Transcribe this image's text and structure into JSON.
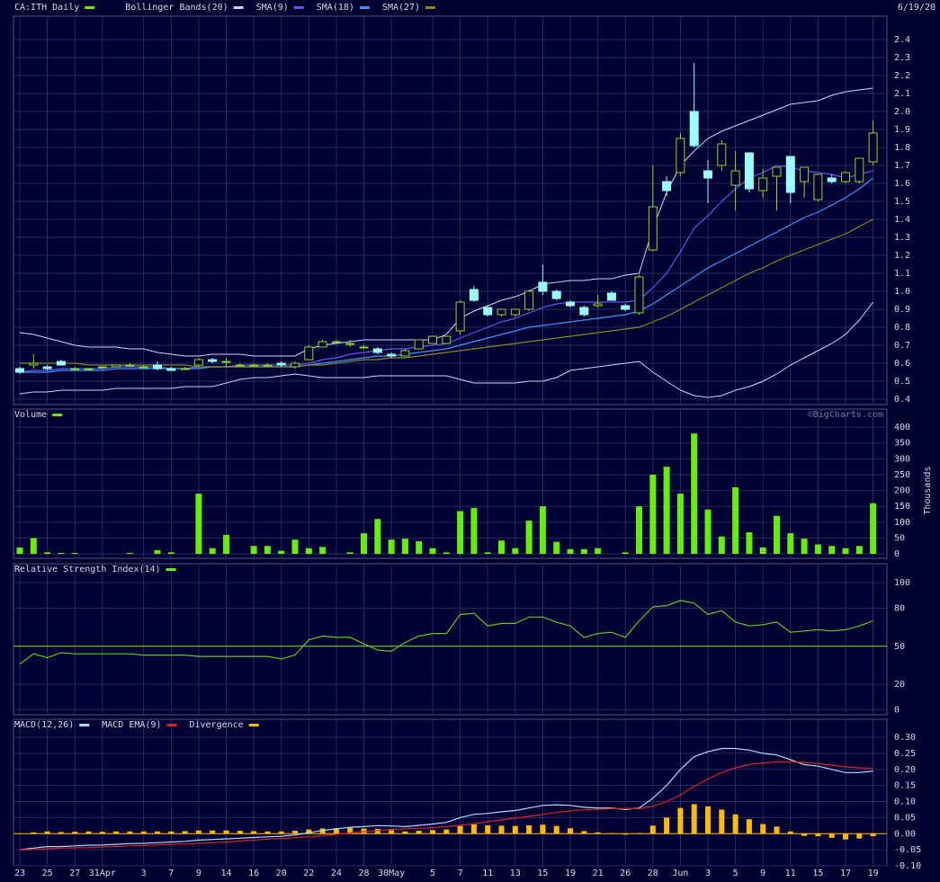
{
  "chart_data": [
    {
      "type": "candlestick",
      "name": "CA:ITH Daily",
      "color": "#88dd22",
      "legend_color": "#66ee00",
      "down_color": "#99ffff",
      "date": "6/19/20",
      "grid": true,
      "open": [
        0.57,
        0.59,
        0.58,
        0.61,
        0.57,
        0.57,
        0.58,
        0.58,
        0.59,
        0.58,
        0.59,
        0.57,
        0.57,
        0.59,
        0.62,
        0.61,
        0.59,
        0.59,
        0.59,
        0.6,
        0.58,
        0.62,
        0.69,
        0.72,
        0.71,
        0.69,
        0.68,
        0.65,
        0.64,
        0.68,
        0.71,
        0.71,
        0.78,
        1.01,
        0.91,
        0.87,
        0.87,
        0.9,
        1.05,
        1.0,
        0.94,
        0.91,
        0.92,
        0.99,
        0.92,
        0.88,
        1.23,
        1.61,
        1.66,
        2.0,
        1.67,
        1.7,
        1.59,
        1.77,
        1.56,
        1.64,
        1.75,
        1.61,
        1.51,
        1.63,
        1.61,
        1.61,
        1.72
      ],
      "high": [
        0.58,
        0.65,
        0.59,
        0.62,
        0.58,
        0.57,
        0.58,
        0.59,
        0.6,
        0.59,
        0.61,
        0.58,
        0.58,
        0.63,
        0.63,
        0.63,
        0.6,
        0.6,
        0.6,
        0.61,
        0.61,
        0.7,
        0.73,
        0.73,
        0.73,
        0.7,
        0.69,
        0.66,
        0.68,
        0.73,
        0.75,
        0.75,
        0.95,
        1.03,
        0.92,
        0.9,
        0.9,
        1.01,
        1.15,
        1.01,
        0.95,
        0.92,
        0.98,
        1.0,
        0.93,
        1.09,
        1.7,
        1.64,
        1.88,
        2.27,
        1.73,
        1.84,
        1.78,
        1.77,
        1.68,
        1.69,
        1.75,
        1.69,
        1.65,
        1.65,
        1.67,
        1.74,
        1.95
      ],
      "low": [
        0.54,
        0.57,
        0.56,
        0.59,
        0.57,
        0.57,
        0.57,
        0.58,
        0.58,
        0.58,
        0.56,
        0.56,
        0.57,
        0.58,
        0.6,
        0.58,
        0.59,
        0.58,
        0.58,
        0.58,
        0.57,
        0.62,
        0.69,
        0.71,
        0.69,
        0.68,
        0.65,
        0.63,
        0.64,
        0.68,
        0.71,
        0.71,
        0.76,
        0.94,
        0.86,
        0.86,
        0.86,
        0.89,
        0.98,
        0.95,
        0.91,
        0.86,
        0.91,
        0.95,
        0.89,
        0.87,
        1.22,
        1.53,
        1.64,
        1.8,
        1.49,
        1.67,
        1.45,
        1.55,
        1.52,
        1.45,
        1.49,
        1.52,
        1.5,
        1.6,
        1.6,
        1.6,
        1.7
      ],
      "close": [
        0.55,
        0.6,
        0.57,
        0.59,
        0.57,
        0.57,
        0.58,
        0.59,
        0.59,
        0.58,
        0.57,
        0.56,
        0.57,
        0.62,
        0.61,
        0.61,
        0.59,
        0.59,
        0.59,
        0.59,
        0.6,
        0.69,
        0.72,
        0.72,
        0.71,
        0.69,
        0.66,
        0.64,
        0.67,
        0.73,
        0.75,
        0.75,
        0.94,
        0.95,
        0.87,
        0.9,
        0.9,
        1.0,
        1.0,
        0.96,
        0.92,
        0.87,
        0.93,
        0.95,
        0.9,
        1.08,
        1.47,
        1.56,
        1.85,
        1.81,
        1.63,
        1.82,
        1.67,
        1.57,
        1.63,
        1.69,
        1.55,
        1.69,
        1.65,
        1.61,
        1.66,
        1.74,
        1.88
      ],
      "overlays": [
        {
          "name": "Bollinger Bands(20)",
          "color": "#c8d8ff",
          "upper": [
            0.77,
            0.76,
            0.74,
            0.72,
            0.7,
            0.69,
            0.69,
            0.69,
            0.68,
            0.68,
            0.66,
            0.65,
            0.64,
            0.64,
            0.65,
            0.65,
            0.65,
            0.64,
            0.64,
            0.64,
            0.64,
            0.68,
            0.7,
            0.71,
            0.72,
            0.73,
            0.73,
            0.73,
            0.73,
            0.73,
            0.73,
            0.76,
            0.85,
            0.89,
            0.92,
            0.95,
            0.97,
            1.0,
            1.04,
            1.05,
            1.06,
            1.06,
            1.07,
            1.07,
            1.09,
            1.1,
            1.35,
            1.55,
            1.7,
            1.78,
            1.85,
            1.89,
            1.92,
            1.95,
            1.98,
            2.01,
            2.04,
            2.05,
            2.06,
            2.09,
            2.11,
            2.12,
            2.13
          ],
          "lower": [
            0.43,
            0.44,
            0.44,
            0.45,
            0.45,
            0.45,
            0.45,
            0.46,
            0.46,
            0.46,
            0.46,
            0.46,
            0.47,
            0.47,
            0.47,
            0.49,
            0.51,
            0.52,
            0.52,
            0.53,
            0.54,
            0.53,
            0.52,
            0.52,
            0.52,
            0.52,
            0.53,
            0.53,
            0.53,
            0.53,
            0.53,
            0.53,
            0.51,
            0.49,
            0.49,
            0.49,
            0.49,
            0.5,
            0.5,
            0.52,
            0.56,
            0.57,
            0.58,
            0.59,
            0.6,
            0.61,
            0.55,
            0.5,
            0.45,
            0.42,
            0.41,
            0.42,
            0.45,
            0.47,
            0.5,
            0.54,
            0.59,
            0.63,
            0.67,
            0.71,
            0.76,
            0.84,
            0.94
          ]
        },
        {
          "name": "SMA(9)",
          "color": "#6655ee",
          "values": [
            0.55,
            0.56,
            0.56,
            0.57,
            0.57,
            0.57,
            0.57,
            0.58,
            0.58,
            0.58,
            0.58,
            0.57,
            0.57,
            0.58,
            0.58,
            0.58,
            0.59,
            0.59,
            0.59,
            0.59,
            0.59,
            0.6,
            0.62,
            0.63,
            0.65,
            0.66,
            0.67,
            0.68,
            0.68,
            0.69,
            0.7,
            0.71,
            0.74,
            0.77,
            0.8,
            0.83,
            0.85,
            0.88,
            0.91,
            0.93,
            0.94,
            0.94,
            0.94,
            0.94,
            0.94,
            0.95,
            1.02,
            1.1,
            1.22,
            1.35,
            1.42,
            1.5,
            1.57,
            1.63,
            1.66,
            1.7,
            1.69,
            1.67,
            1.66,
            1.65,
            1.63,
            1.65,
            1.67
          ]
        },
        {
          "name": "SMA(18)",
          "color": "#3399ff",
          "values": [
            0.55,
            0.55,
            0.55,
            0.56,
            0.56,
            0.56,
            0.56,
            0.57,
            0.57,
            0.57,
            0.57,
            0.57,
            0.57,
            0.57,
            0.58,
            0.58,
            0.58,
            0.58,
            0.58,
            0.58,
            0.58,
            0.59,
            0.6,
            0.61,
            0.62,
            0.63,
            0.64,
            0.64,
            0.65,
            0.66,
            0.67,
            0.68,
            0.7,
            0.72,
            0.74,
            0.76,
            0.78,
            0.8,
            0.81,
            0.82,
            0.83,
            0.84,
            0.85,
            0.86,
            0.87,
            0.89,
            0.93,
            0.98,
            1.03,
            1.08,
            1.13,
            1.17,
            1.21,
            1.25,
            1.29,
            1.33,
            1.37,
            1.41,
            1.44,
            1.48,
            1.52,
            1.57,
            1.63
          ]
        },
        {
          "name": "SMA(27)",
          "color": "#8a8a22",
          "values": [
            0.6,
            0.6,
            0.6,
            0.6,
            0.6,
            0.59,
            0.59,
            0.59,
            0.59,
            0.59,
            0.59,
            0.59,
            0.59,
            0.58,
            0.58,
            0.58,
            0.58,
            0.58,
            0.58,
            0.58,
            0.58,
            0.59,
            0.59,
            0.6,
            0.61,
            0.62,
            0.62,
            0.63,
            0.63,
            0.64,
            0.65,
            0.66,
            0.67,
            0.68,
            0.69,
            0.7,
            0.71,
            0.72,
            0.73,
            0.74,
            0.75,
            0.76,
            0.77,
            0.78,
            0.79,
            0.8,
            0.83,
            0.86,
            0.9,
            0.94,
            0.98,
            1.02,
            1.06,
            1.1,
            1.13,
            1.17,
            1.2,
            1.23,
            1.26,
            1.29,
            1.32,
            1.36,
            1.4
          ]
        }
      ],
      "ylim": [
        0.37,
        2.53
      ],
      "yticks": [
        0.4,
        0.5,
        0.6,
        0.7,
        0.8,
        0.9,
        {
          "value": 1,
          "label": "1.0"
        },
        1.1,
        1.2,
        1.3,
        1.4,
        1.5,
        1.6,
        1.7,
        1.8,
        1.9,
        {
          "value": 2,
          "label": "2.0"
        },
        2.1,
        2.2,
        2.3,
        2.4
      ]
    },
    {
      "type": "bar",
      "name": "Volume",
      "color": "#66ee00",
      "y_label": "Thousands",
      "watermark": "©BigCharts.com",
      "grid": true,
      "values": [
        20,
        50,
        5,
        3,
        3,
        0,
        0,
        0,
        3,
        0,
        12,
        5,
        0,
        190,
        18,
        60,
        0,
        25,
        25,
        10,
        45,
        18,
        22,
        0,
        5,
        65,
        110,
        45,
        48,
        40,
        18,
        5,
        135,
        145,
        5,
        42,
        18,
        105,
        150,
        38,
        15,
        15,
        18,
        0,
        5,
        150,
        250,
        275,
        190,
        380,
        140,
        55,
        210,
        68,
        20,
        120,
        65,
        48,
        30,
        25,
        18,
        25,
        160
      ],
      "ylim": [
        -14,
        457
      ],
      "yticks": [
        0,
        50,
        100,
        150,
        200,
        250,
        300,
        350,
        400
      ]
    },
    {
      "type": "line",
      "grid": true,
      "series": [
        {
          "name": "Relative Strength Index(14)",
          "color": "#55cc22",
          "legend_color": "#66ee00",
          "values": [
            36,
            44,
            41,
            45,
            44,
            44,
            44,
            44,
            44,
            43,
            43,
            43,
            43,
            42,
            42,
            42,
            42,
            42,
            42,
            40,
            43,
            55,
            58,
            57,
            57,
            52,
            47,
            46,
            53,
            58,
            60,
            60,
            75,
            76,
            66,
            68,
            68,
            73,
            73,
            69,
            66,
            57,
            60,
            61,
            57,
            70,
            81,
            82,
            86,
            84,
            75,
            78,
            69,
            66,
            67,
            69,
            61,
            62,
            63,
            62,
            63,
            66,
            70
          ]
        }
      ],
      "ref_line": {
        "value": 50,
        "color": "#66ee00"
      },
      "ylim": [
        -4,
        115
      ],
      "yticks": [
        0,
        20,
        50,
        80,
        100
      ]
    },
    {
      "type": "line",
      "grid": true,
      "series": [
        {
          "name": "MACD(12,26)",
          "color": "#aaddff",
          "kind": "line",
          "values": [
            -0.05,
            -0.045,
            -0.04,
            -0.04,
            -0.038,
            -0.036,
            -0.035,
            -0.033,
            -0.031,
            -0.03,
            -0.028,
            -0.026,
            -0.024,
            -0.02,
            -0.018,
            -0.016,
            -0.014,
            -0.012,
            -0.01,
            -0.008,
            -0.004,
            0.003,
            0.01,
            0.015,
            0.02,
            0.022,
            0.025,
            0.024,
            0.022,
            0.026,
            0.03,
            0.035,
            0.05,
            0.06,
            0.063,
            0.068,
            0.072,
            0.08,
            0.088,
            0.09,
            0.088,
            0.082,
            0.08,
            0.08,
            0.075,
            0.08,
            0.11,
            0.15,
            0.2,
            0.24,
            0.255,
            0.265,
            0.265,
            0.26,
            0.25,
            0.245,
            0.23,
            0.215,
            0.21,
            0.2,
            0.19,
            0.19,
            0.195
          ]
        },
        {
          "name": "MACD EMA(9)",
          "color": "#dd2222",
          "kind": "line",
          "values": [
            -0.05,
            -0.049,
            -0.047,
            -0.045,
            -0.044,
            -0.043,
            -0.041,
            -0.04,
            -0.038,
            -0.037,
            -0.035,
            -0.033,
            -0.032,
            -0.03,
            -0.028,
            -0.026,
            -0.023,
            -0.02,
            -0.017,
            -0.015,
            -0.013,
            -0.01,
            -0.006,
            -0.002,
            0.002,
            0.006,
            0.01,
            0.013,
            0.015,
            0.017,
            0.019,
            0.022,
            0.026,
            0.031,
            0.037,
            0.043,
            0.048,
            0.054,
            0.06,
            0.066,
            0.071,
            0.074,
            0.076,
            0.078,
            0.078,
            0.078,
            0.085,
            0.1,
            0.12,
            0.148,
            0.17,
            0.19,
            0.205,
            0.215,
            0.22,
            0.223,
            0.223,
            0.222,
            0.218,
            0.213,
            0.208,
            0.205,
            0.203
          ]
        },
        {
          "name": "Divergence",
          "color": "#ffbb00",
          "kind": "bar",
          "values": [
            0.0,
            0.004,
            0.007,
            0.005,
            0.006,
            0.007,
            0.006,
            0.007,
            0.007,
            0.007,
            0.007,
            0.007,
            0.008,
            0.01,
            0.01,
            0.01,
            0.009,
            0.008,
            0.007,
            0.007,
            0.009,
            0.013,
            0.016,
            0.017,
            0.018,
            0.016,
            0.015,
            0.011,
            0.007,
            0.009,
            0.011,
            0.013,
            0.024,
            0.029,
            0.026,
            0.025,
            0.024,
            0.026,
            0.028,
            0.024,
            0.017,
            0.008,
            0.004,
            0.002,
            -0.003,
            0.002,
            0.025,
            0.05,
            0.08,
            0.092,
            0.085,
            0.075,
            0.06,
            0.045,
            0.03,
            0.022,
            0.007,
            -0.007,
            -0.008,
            -0.013,
            -0.018,
            -0.015,
            -0.008
          ]
        }
      ],
      "categories": [
        "23",
        null,
        "25",
        null,
        "27",
        null,
        "31Apr",
        null,
        null,
        "3",
        null,
        "7",
        null,
        "9",
        null,
        "14",
        null,
        "16",
        null,
        "20",
        null,
        "22",
        null,
        "24",
        null,
        "28",
        null,
        "30May",
        null,
        null,
        "5",
        null,
        "7",
        null,
        "11",
        null,
        "13",
        null,
        "15",
        null,
        "19",
        null,
        "21",
        null,
        "26",
        null,
        "28",
        null,
        "Jun",
        null,
        "3",
        null,
        "5",
        null,
        "9",
        null,
        "11",
        null,
        "15",
        null,
        "17",
        null,
        "19"
      ],
      "ylim": [
        -0.1,
        0.356
      ],
      "yticks": [
        {
          "value": 0.3,
          "label": "0.30"
        },
        0.25,
        {
          "value": 0.2,
          "label": "0.20"
        },
        0.15,
        {
          "value": 0.1,
          "label": "0.10"
        },
        0.05,
        {
          "value": 0,
          "label": "0.00"
        },
        -0.05,
        {
          "value": -0.1,
          "label": "-0.10"
        }
      ]
    }
  ]
}
